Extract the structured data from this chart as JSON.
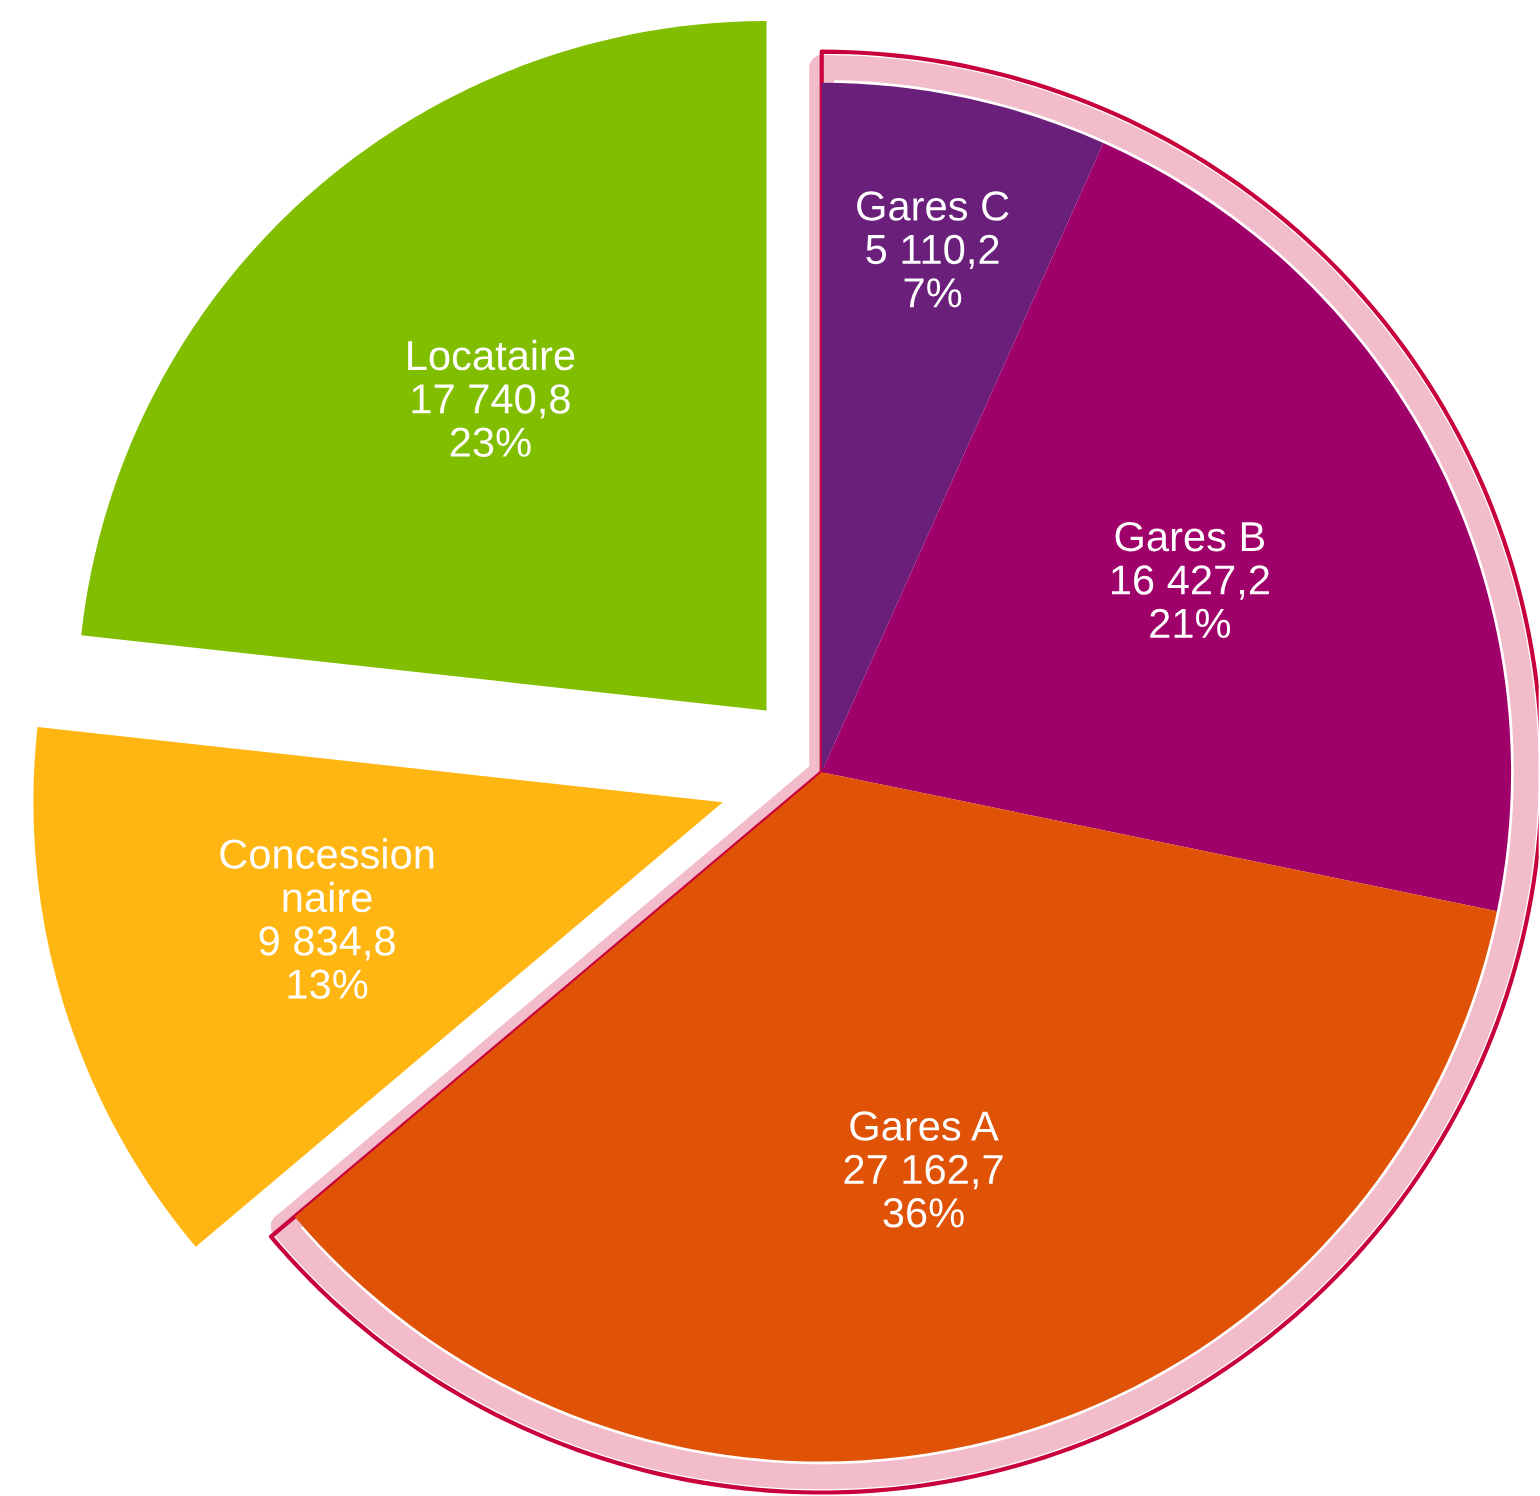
{
  "chart_data": {
    "type": "pie",
    "categories": [
      "Gares C",
      "Gares B",
      "Gares A",
      "Concession\nnaire",
      "Locataire"
    ],
    "values": [
      5110.2,
      16427.2,
      27162.7,
      9834.8,
      17740.8
    ],
    "value_labels": [
      "5 110,2\n7%",
      "16 427,2\n21%",
      "27 162,7\n36%",
      "9 834,8\n13%",
      "17 740,8\n23%"
    ],
    "colors": [
      "#6a1f7a",
      "#a0006a",
      "#e05206",
      "#ffb612",
      "#82be00"
    ]
  }
}
